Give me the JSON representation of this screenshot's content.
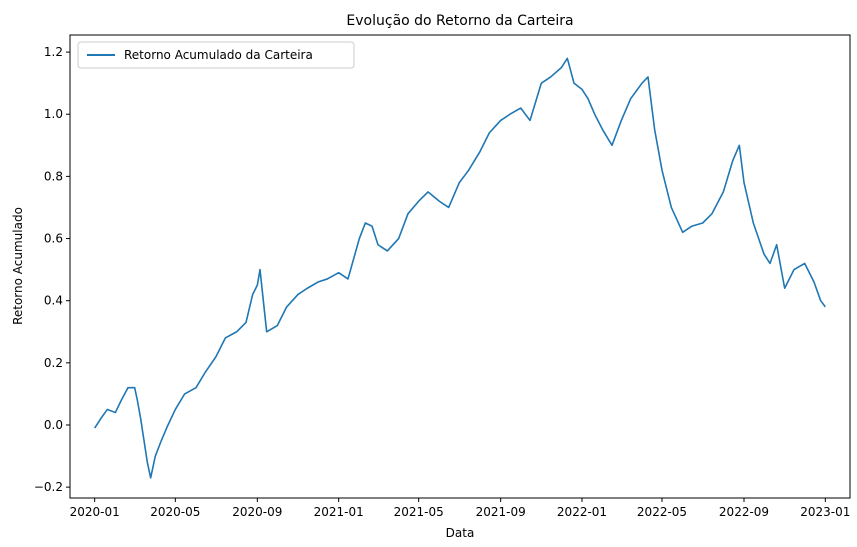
{
  "chart_data": {
    "type": "line",
    "title": "Evolução do Retorno da Carteira",
    "xlabel": "Data",
    "ylabel": "Retorno Acumulado",
    "xlim": [
      "2019-11-25",
      "2023-02-07"
    ],
    "ylim": [
      -0.235,
      1.255
    ],
    "x_ticks": [
      "2020-01",
      "2020-05",
      "2020-09",
      "2021-01",
      "2021-05",
      "2021-09",
      "2022-01",
      "2022-05",
      "2022-09",
      "2023-01"
    ],
    "y_ticks": [
      -0.2,
      0.0,
      0.2,
      0.4,
      0.6,
      0.8,
      1.0,
      1.2
    ],
    "y_tick_labels": [
      "−0.2",
      "0.0",
      "0.2",
      "0.4",
      "0.6",
      "0.8",
      "1.0",
      "1.2"
    ],
    "legend": {
      "position": "upper-left",
      "entries": [
        "Retorno Acumulado da Carteira"
      ]
    },
    "grid": false,
    "series": [
      {
        "name": "Retorno Acumulado da Carteira",
        "color": "#1f77b4",
        "x": [
          "2020-01-01",
          "2020-01-10",
          "2020-01-20",
          "2020-02-01",
          "2020-02-10",
          "2020-02-20",
          "2020-03-01",
          "2020-03-05",
          "2020-03-10",
          "2020-03-15",
          "2020-03-20",
          "2020-03-25",
          "2020-04-01",
          "2020-04-10",
          "2020-04-20",
          "2020-05-01",
          "2020-05-15",
          "2020-06-01",
          "2020-06-15",
          "2020-07-01",
          "2020-07-15",
          "2020-08-01",
          "2020-08-15",
          "2020-08-25",
          "2020-09-01",
          "2020-09-05",
          "2020-09-15",
          "2020-10-01",
          "2020-10-15",
          "2020-11-01",
          "2020-11-15",
          "2020-12-01",
          "2020-12-15",
          "2021-01-01",
          "2021-01-15",
          "2021-02-01",
          "2021-02-10",
          "2021-02-20",
          "2021-03-01",
          "2021-03-15",
          "2021-04-01",
          "2021-04-15",
          "2021-05-01",
          "2021-05-15",
          "2021-06-01",
          "2021-06-15",
          "2021-07-01",
          "2021-07-15",
          "2021-08-01",
          "2021-08-15",
          "2021-09-01",
          "2021-09-15",
          "2021-10-01",
          "2021-10-15",
          "2021-11-01",
          "2021-11-15",
          "2021-12-01",
          "2021-12-10",
          "2021-12-20",
          "2022-01-01",
          "2022-01-10",
          "2022-01-20",
          "2022-02-01",
          "2022-02-15",
          "2022-03-01",
          "2022-03-15",
          "2022-04-01",
          "2022-04-10",
          "2022-04-20",
          "2022-05-01",
          "2022-05-15",
          "2022-06-01",
          "2022-06-15",
          "2022-07-01",
          "2022-07-15",
          "2022-08-01",
          "2022-08-15",
          "2022-08-25",
          "2022-09-01",
          "2022-09-15",
          "2022-10-01",
          "2022-10-10",
          "2022-10-20",
          "2022-11-01",
          "2022-11-15",
          "2022-12-01",
          "2022-12-15",
          "2022-12-25",
          "2023-01-01"
        ],
        "y": [
          -0.01,
          0.02,
          0.05,
          0.04,
          0.08,
          0.12,
          0.12,
          0.08,
          0.02,
          -0.05,
          -0.12,
          -0.17,
          -0.1,
          -0.05,
          0.0,
          0.05,
          0.1,
          0.12,
          0.17,
          0.22,
          0.28,
          0.3,
          0.33,
          0.42,
          0.45,
          0.5,
          0.3,
          0.32,
          0.38,
          0.42,
          0.44,
          0.46,
          0.47,
          0.49,
          0.47,
          0.6,
          0.65,
          0.64,
          0.58,
          0.56,
          0.6,
          0.68,
          0.72,
          0.75,
          0.72,
          0.7,
          0.78,
          0.82,
          0.88,
          0.94,
          0.98,
          1.0,
          1.02,
          0.98,
          1.1,
          1.12,
          1.15,
          1.18,
          1.1,
          1.08,
          1.05,
          1.0,
          0.95,
          0.9,
          0.98,
          1.05,
          1.1,
          1.12,
          0.95,
          0.82,
          0.7,
          0.62,
          0.64,
          0.65,
          0.68,
          0.75,
          0.85,
          0.9,
          0.78,
          0.65,
          0.55,
          0.52,
          0.58,
          0.44,
          0.5,
          0.52,
          0.46,
          0.4,
          0.38
        ]
      }
    ]
  }
}
